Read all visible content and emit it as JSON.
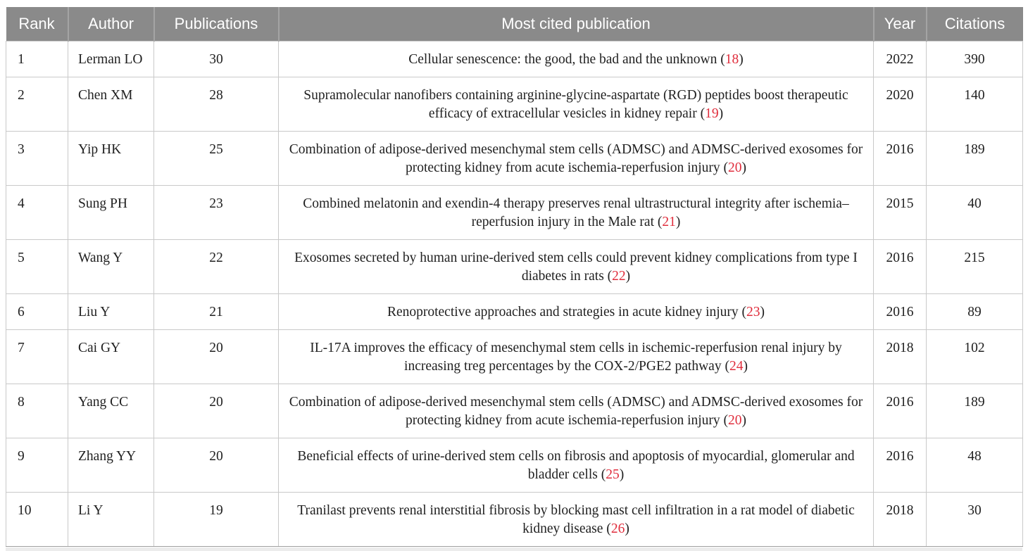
{
  "colors": {
    "header_bg": "#8a8a8a",
    "header_text": "#ffffff",
    "header_separator": "#a4a4a4",
    "grid_line": "#c9c9c9",
    "bottom_border": "#9e9e9e",
    "body_text": "#212121",
    "reference_number": "#e02d3c"
  },
  "table": {
    "columns": [
      {
        "key": "rank",
        "label": "Rank"
      },
      {
        "key": "author",
        "label": "Author"
      },
      {
        "key": "publications",
        "label": "Publications"
      },
      {
        "key": "title",
        "label": "Most cited publication"
      },
      {
        "key": "year",
        "label": "Year"
      },
      {
        "key": "citations",
        "label": "Citations"
      }
    ],
    "rows": [
      {
        "rank": "1",
        "author": "Lerman LO",
        "publications": "30",
        "title": "Cellular senescence: the good, the bad and the unknown",
        "ref": "18",
        "year": "2022",
        "citations": "390"
      },
      {
        "rank": "2",
        "author": "Chen XM",
        "publications": "28",
        "title": "Supramolecular nanofibers containing arginine-glycine-aspartate (RGD) peptides boost therapeutic efficacy of extracellular vesicles in kidney repair",
        "ref": "19",
        "year": "2020",
        "citations": "140"
      },
      {
        "rank": "3",
        "author": "Yip HK",
        "publications": "25",
        "title": "Combination of adipose-derived mesenchymal stem cells (ADMSC) and ADMSC-derived exosomes for protecting kidney from acute ischemia-reperfusion injury",
        "ref": "20",
        "year": "2016",
        "citations": "189"
      },
      {
        "rank": "4",
        "author": "Sung PH",
        "publications": "23",
        "title": "Combined melatonin and exendin-4 therapy preserves renal ultrastructural integrity after ischemia–reperfusion injury in the Male rat",
        "ref": "21",
        "year": "2015",
        "citations": "40"
      },
      {
        "rank": "5",
        "author": "Wang Y",
        "publications": "22",
        "title": "Exosomes secreted by human urine-derived stem cells could prevent kidney complications from type I diabetes in rats",
        "ref": "22",
        "year": "2016",
        "citations": "215"
      },
      {
        "rank": "6",
        "author": "Liu Y",
        "publications": "21",
        "title": "Renoprotective approaches and strategies in acute kidney injury",
        "ref": "23",
        "year": "2016",
        "citations": "89"
      },
      {
        "rank": "7",
        "author": "Cai GY",
        "publications": "20",
        "title": "IL-17A improves the efficacy of mesenchymal stem cells in ischemic-reperfusion renal injury by increasing treg percentages by the COX-2/PGE2 pathway",
        "ref": "24",
        "year": "2018",
        "citations": "102"
      },
      {
        "rank": "8",
        "author": "Yang CC",
        "publications": "20",
        "title": "Combination of adipose-derived mesenchymal stem cells (ADMSC) and ADMSC-derived exosomes for protecting kidney from acute ischemia-reperfusion injury",
        "ref": "20",
        "year": "2016",
        "citations": "189"
      },
      {
        "rank": "9",
        "author": "Zhang YY",
        "publications": "20",
        "title": "Beneficial effects of urine-derived stem cells on fibrosis and apoptosis of myocardial, glomerular and bladder cells",
        "ref": "25",
        "year": "2016",
        "citations": "48"
      },
      {
        "rank": "10",
        "author": "Li Y",
        "publications": "19",
        "title": "Tranilast prevents renal interstitial fibrosis by blocking mast cell infiltration in a rat model of diabetic kidney disease",
        "ref": "26",
        "year": "2018",
        "citations": "30"
      }
    ]
  }
}
